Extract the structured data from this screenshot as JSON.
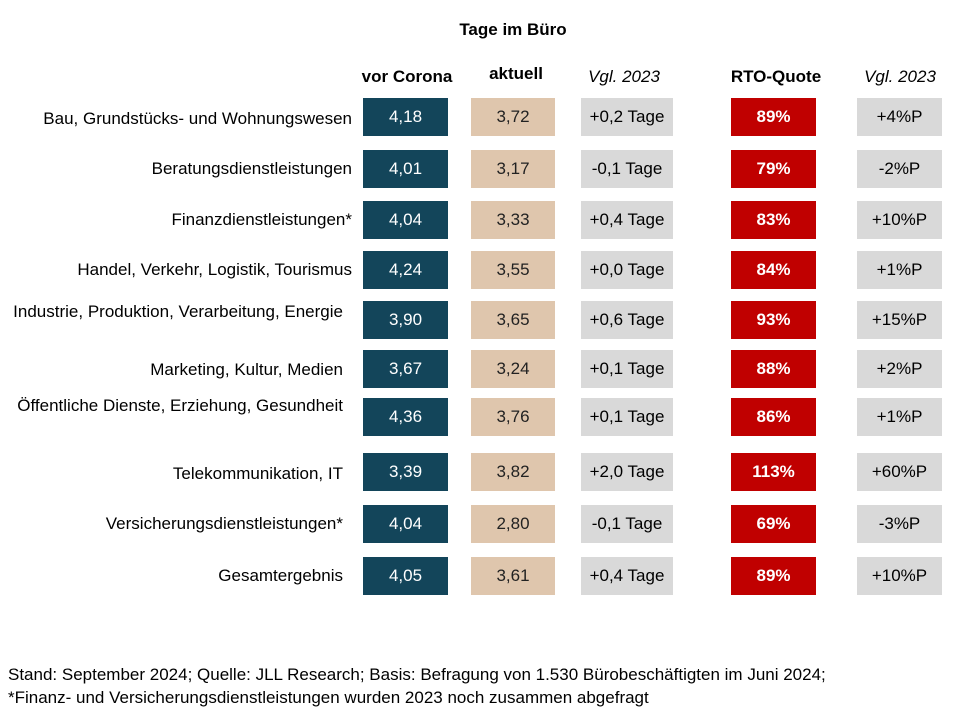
{
  "chart_data": {
    "type": "table",
    "title": "Tage im Büro",
    "columns": {
      "vor_corona": "vor Corona",
      "aktuell": "aktuell",
      "vgl_tage": "Vgl. 2023",
      "rto": "RTO-Quote",
      "vgl_rto": "Vgl. 2023"
    },
    "rows": [
      {
        "label": "Bau, Grundstücks- und Wohnungswesen",
        "vor_corona": "4,18",
        "aktuell": "3,72",
        "vgl_tage": "+0,2 Tage",
        "rto": "89%",
        "vgl_rto": "+4%P"
      },
      {
        "label": "Beratungsdienstleistungen",
        "vor_corona": "4,01",
        "aktuell": "3,17",
        "vgl_tage": "-0,1 Tage",
        "rto": "79%",
        "vgl_rto": "-2%P"
      },
      {
        "label": "Finanzdienstleistungen*",
        "vor_corona": "4,04",
        "aktuell": "3,33",
        "vgl_tage": "+0,4 Tage",
        "rto": "83%",
        "vgl_rto": "+10%P"
      },
      {
        "label": "Handel, Verkehr, Logistik, Tourismus",
        "vor_corona": "4,24",
        "aktuell": "3,55",
        "vgl_tage": "+0,0 Tage",
        "rto": "84%",
        "vgl_rto": "+1%P"
      },
      {
        "label": "Industrie, Produktion, Verarbeitung, Energie",
        "vor_corona": "3,90",
        "aktuell": "3,65",
        "vgl_tage": "+0,6 Tage",
        "rto": "93%",
        "vgl_rto": "+15%P"
      },
      {
        "label": "Marketing, Kultur, Medien",
        "vor_corona": "3,67",
        "aktuell": "3,24",
        "vgl_tage": "+0,1 Tage",
        "rto": "88%",
        "vgl_rto": "+2%P"
      },
      {
        "label": "Öffentliche Dienste, Erziehung, Gesundheit",
        "vor_corona": "4,36",
        "aktuell": "3,76",
        "vgl_tage": "+0,1 Tage",
        "rto": "86%",
        "vgl_rto": "+1%P"
      },
      {
        "label": "Telekommunikation, IT",
        "vor_corona": "3,39",
        "aktuell": "3,82",
        "vgl_tage": "+2,0 Tage",
        "rto": "113%",
        "vgl_rto": "+60%P"
      },
      {
        "label": "Versicherungsdienstleistungen*",
        "vor_corona": "4,04",
        "aktuell": "2,80",
        "vgl_tage": "-0,1 Tage",
        "rto": "69%",
        "vgl_rto": "-3%P"
      },
      {
        "label": "Gesamtergebnis",
        "vor_corona": "4,05",
        "aktuell": "3,61",
        "vgl_tage": "+0,4 Tage",
        "rto": "89%",
        "vgl_rto": "+10%P"
      }
    ],
    "colors": {
      "vor_corona": "#13455a",
      "aktuell": "#dfc6ad",
      "vgl": "#d9d9d9",
      "rto": "#c00000"
    }
  },
  "footnote": {
    "line1": "Stand: September 2024; Quelle: JLL Research; Basis: Befragung von 1.530 Bürobeschäftigten im Juni 2024;",
    "line2": "*Finanz- und Versicherungsdienstleistungen wurden 2023 noch zusammen abgefragt"
  }
}
